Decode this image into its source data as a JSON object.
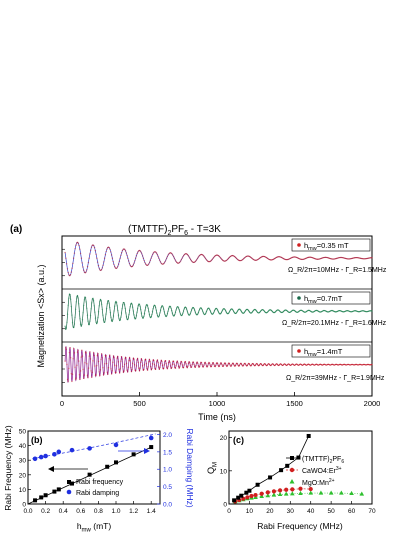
{
  "figure_title_main": "(TMTTF)",
  "figure_title_sub": "2",
  "figure_title_main2": "PF",
  "figure_title_sub2": "6",
  "figure_title_rest": " - T=3K",
  "colors": {
    "osc_blue": "#3040c8",
    "osc_green": "#1a6a4a",
    "osc_purple": "#8a1a8a",
    "marker_red": "#d02020",
    "rabi_black": "#000000",
    "damp_blue": "#2030e0",
    "mgo_green": "#2ec02e"
  },
  "chart_data": [
    {
      "id": "a",
      "panel_label": "(a)",
      "type": "line",
      "xlabel": "Time (ns)",
      "ylabel": "Magnetization <Sx> (a.u.)",
      "x_ticks": [
        "0",
        "500",
        "1000",
        "1500",
        "2000"
      ],
      "xlim": [
        0,
        2000
      ],
      "series": [
        {
          "name_main": "h",
          "name_sub": "mw",
          "name_rest": "=0.35 mT",
          "freq_mhz": 10,
          "damping_mhz": 1.5,
          "annotation": "Ω_R/2π=10MHz - Γ_R=1.5MHz"
        },
        {
          "name_main": "h",
          "name_sub": "mw",
          "name_rest": "=0.7mT",
          "freq_mhz": 20.1,
          "damping_mhz": 1.6,
          "annotation": "Ω_R/2π=20.1MHz - Γ_R=1.6MHz"
        },
        {
          "name_main": "h",
          "name_sub": "mw",
          "name_rest": "=1.4mT",
          "freq_mhz": 39,
          "damping_mhz": 1.9,
          "annotation": "Ω_R/2π=39MHz - Γ_R=1.9MHz"
        }
      ]
    },
    {
      "id": "b",
      "panel_label": "(b)",
      "type": "scatter",
      "xlabel_main": "h",
      "xlabel_sub": "mw",
      "xlabel_rest": " (mT)",
      "ylabel_left": "Rabi Frequency (MHz)",
      "ylabel_right": "Rabi Damping (MHz)",
      "x_ticks": [
        "0.0",
        "0.2",
        "0.4",
        "0.6",
        "0.8",
        "1.0",
        "1.2",
        "1.4"
      ],
      "y_left_ticks": [
        "0",
        "10",
        "20",
        "30",
        "40",
        "50"
      ],
      "y_right_ticks": [
        "0.0",
        "0.5",
        "1.0",
        "1.5",
        "2.0"
      ],
      "xlim": [
        0,
        1.5
      ],
      "ylim_left": [
        0,
        50
      ],
      "ylim_right": [
        0,
        2.1
      ],
      "legend": [
        "Rabi frequency",
        "Rabi damping"
      ],
      "rabi_frequency": {
        "x": [
          0.08,
          0.15,
          0.2,
          0.3,
          0.35,
          0.5,
          0.7,
          0.9,
          1.0,
          1.2,
          1.4
        ],
        "y": [
          2.5,
          4.5,
          6,
          8.5,
          10,
          14,
          20.1,
          25.5,
          28.5,
          34,
          39
        ]
      },
      "rabi_damping": {
        "x": [
          0.08,
          0.15,
          0.2,
          0.3,
          0.35,
          0.5,
          0.7,
          1.0,
          1.4
        ],
        "y": [
          1.3,
          1.35,
          1.38,
          1.43,
          1.5,
          1.55,
          1.6,
          1.7,
          1.9
        ]
      }
    },
    {
      "id": "c",
      "panel_label": "(c)",
      "type": "scatter",
      "xlabel": "Rabi Frequency (MHz)",
      "ylabel_main": "Q",
      "ylabel_sub": "M",
      "x_ticks": [
        "0",
        "10",
        "20",
        "30",
        "40",
        "50",
        "60",
        "70"
      ],
      "y_ticks": [
        "0",
        "10",
        "20"
      ],
      "xlim": [
        0,
        70
      ],
      "ylim": [
        0,
        22
      ],
      "legend": [
        {
          "main": "(TMTTF)",
          "sub": "2",
          "main2": "PF",
          "sub2": "6"
        },
        {
          "main": "CaWO4:Er",
          "sup": "3+"
        },
        {
          "main": "MgO:Mn",
          "sup": "2+"
        }
      ],
      "tmttf": {
        "x": [
          2.5,
          4.5,
          6,
          8.5,
          10,
          14,
          20.1,
          25.5,
          28.5,
          34,
          39
        ],
        "y": [
          1.1,
          1.9,
          2.5,
          3.4,
          4.0,
          5.8,
          8.0,
          10.2,
          11.5,
          14.0,
          20.5
        ]
      },
      "cawo4": {
        "x": [
          3,
          5,
          7,
          9,
          11,
          13,
          16,
          19,
          22,
          25,
          28,
          31,
          35,
          40
        ],
        "y": [
          0.8,
          1.2,
          1.6,
          2.0,
          2.4,
          2.7,
          3.1,
          3.5,
          3.8,
          4.1,
          4.3,
          4.4,
          4.6,
          4.5
        ]
      },
      "mgo": {
        "x": [
          3,
          5,
          7,
          9,
          11,
          13,
          16,
          19,
          22,
          25,
          28,
          31,
          35,
          40,
          45,
          50,
          55,
          60,
          65
        ],
        "y": [
          0.7,
          1.0,
          1.3,
          1.6,
          1.8,
          2.0,
          2.3,
          2.5,
          2.7,
          2.9,
          3.0,
          3.1,
          3.2,
          3.3,
          3.3,
          3.3,
          3.3,
          3.2,
          3.0
        ]
      }
    }
  ]
}
